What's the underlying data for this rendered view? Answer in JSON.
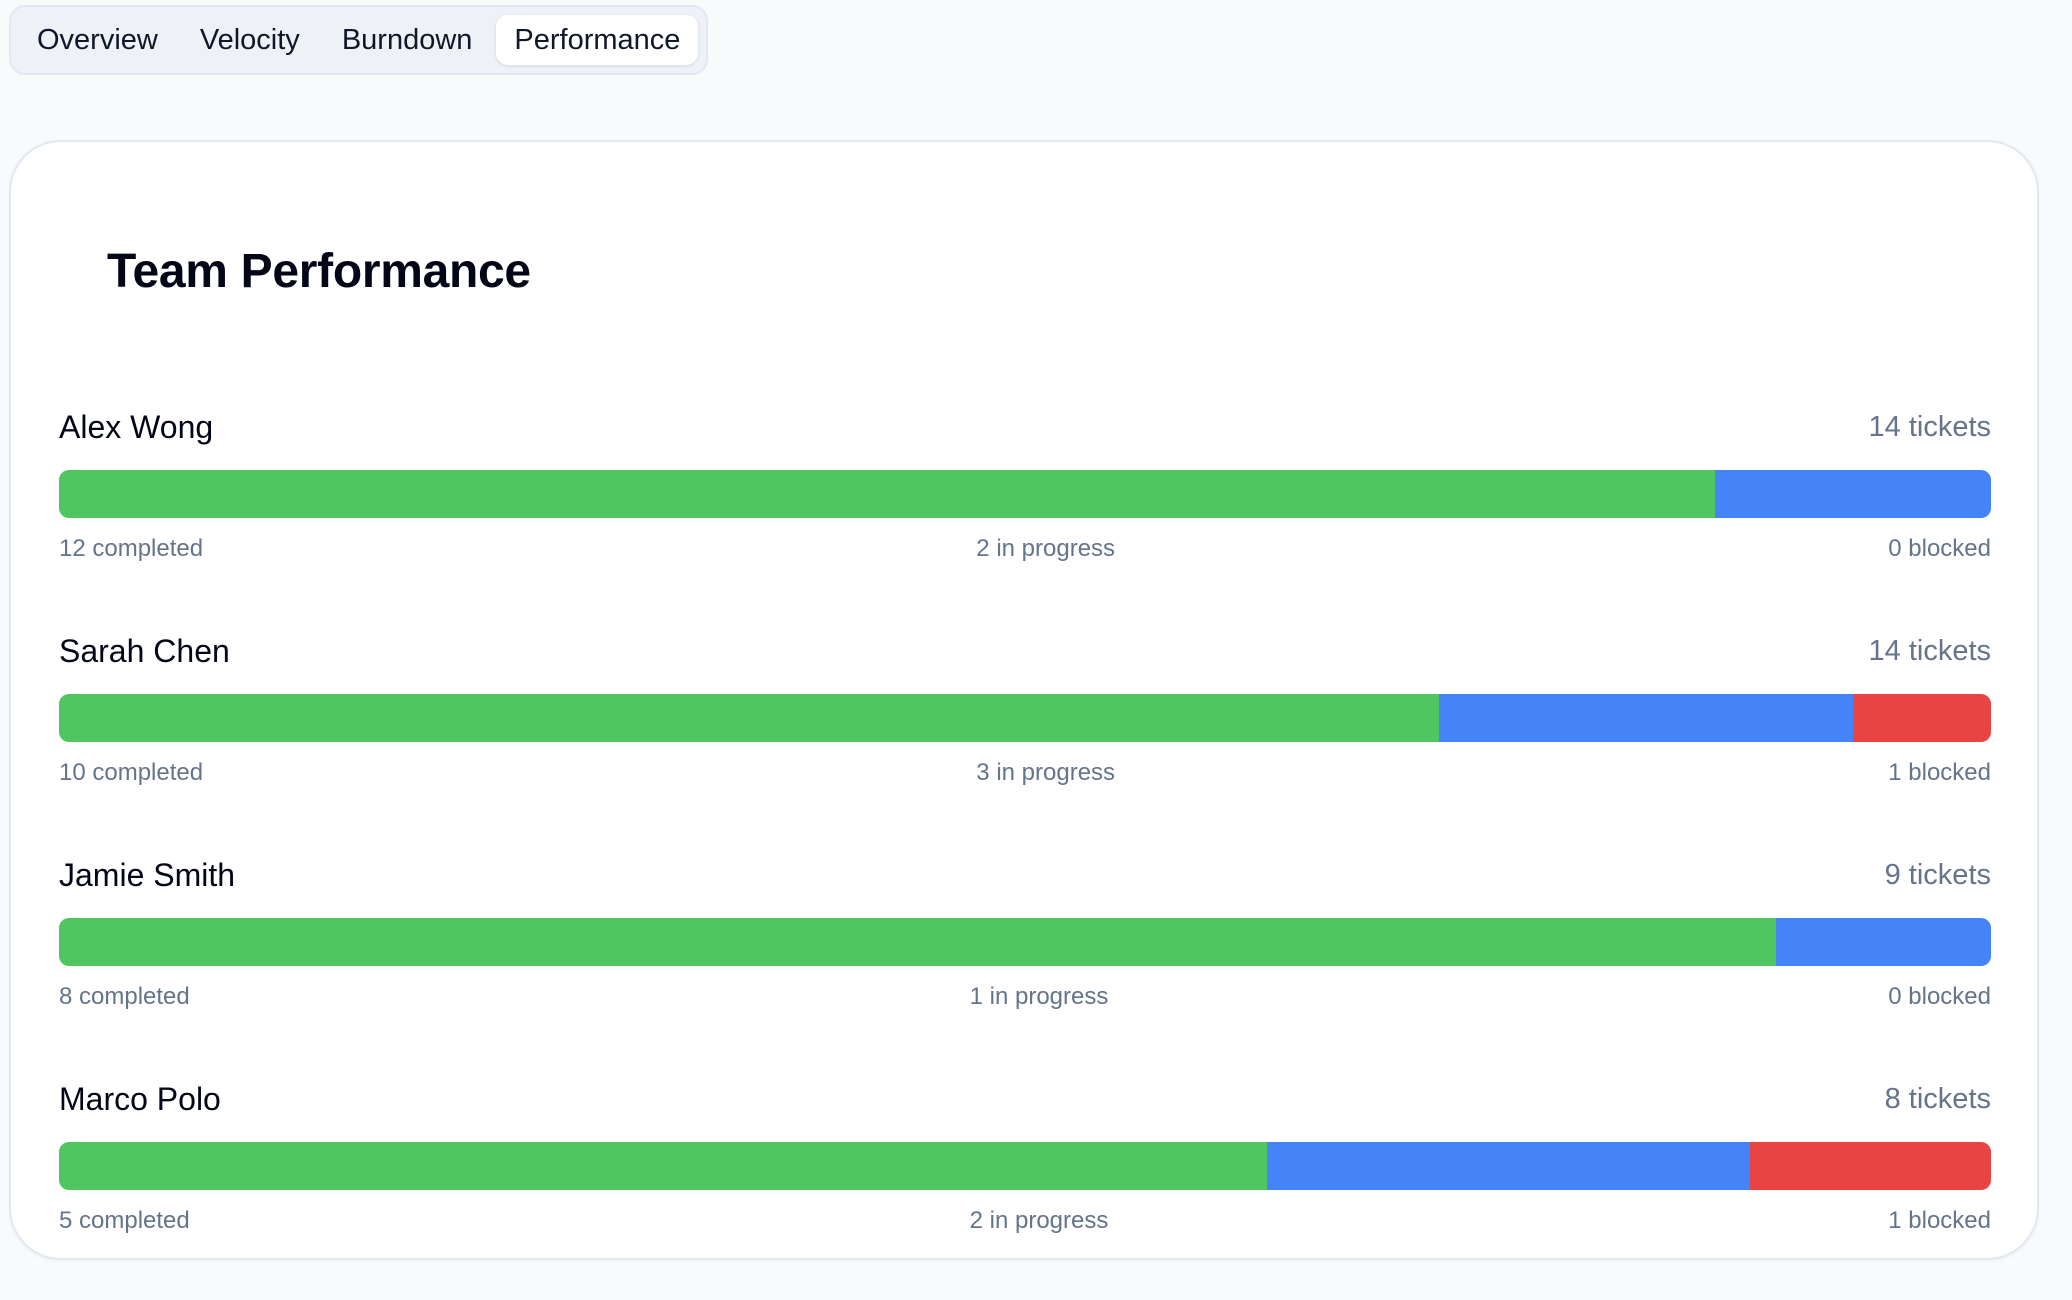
{
  "tabs": [
    {
      "label": "Overview",
      "active": false
    },
    {
      "label": "Velocity",
      "active": false
    },
    {
      "label": "Burndown",
      "active": false
    },
    {
      "label": "Performance",
      "active": true
    }
  ],
  "card": {
    "title": "Team Performance"
  },
  "colors": {
    "completed": "#4fc65f",
    "in_progress": "#4483f8",
    "blocked": "#e74443"
  },
  "members": [
    {
      "name": "Alex Wong",
      "total_label": "14 tickets",
      "completed": 12,
      "in_progress": 2,
      "blocked": 0,
      "completed_label": "12 completed",
      "in_progress_label": "2 in progress",
      "blocked_label": "0 blocked"
    },
    {
      "name": "Sarah Chen",
      "total_label": "14 tickets",
      "completed": 10,
      "in_progress": 3,
      "blocked": 1,
      "completed_label": "10 completed",
      "in_progress_label": "3 in progress",
      "blocked_label": "1 blocked"
    },
    {
      "name": "Jamie Smith",
      "total_label": "9 tickets",
      "completed": 8,
      "in_progress": 1,
      "blocked": 0,
      "completed_label": "8 completed",
      "in_progress_label": "1 in progress",
      "blocked_label": "0 blocked"
    },
    {
      "name": "Marco Polo",
      "total_label": "8 tickets",
      "completed": 5,
      "in_progress": 2,
      "blocked": 1,
      "completed_label": "5 completed",
      "in_progress_label": "2 in progress",
      "blocked_label": "1 blocked"
    }
  ]
}
